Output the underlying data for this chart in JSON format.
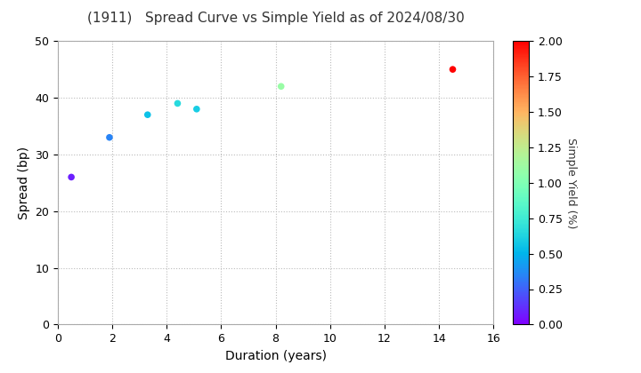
{
  "title": "(1911)   Spread Curve vs Simple Yield as of 2024/08/30",
  "xlabel": "Duration (years)",
  "ylabel": "Spread (bp)",
  "colorbar_label": "Simple Yield (%)",
  "xlim": [
    0,
    16
  ],
  "ylim": [
    0,
    50
  ],
  "xticks": [
    0,
    2,
    4,
    6,
    8,
    10,
    12,
    14,
    16
  ],
  "yticks": [
    0,
    10,
    20,
    30,
    40,
    50
  ],
  "colorbar_ticks": [
    0.0,
    0.25,
    0.5,
    0.75,
    1.0,
    1.25,
    1.5,
    1.75,
    2.0
  ],
  "points": [
    {
      "duration": 0.5,
      "spread": 26,
      "simple_yield": 0.08
    },
    {
      "duration": 1.9,
      "spread": 33,
      "simple_yield": 0.35
    },
    {
      "duration": 3.3,
      "spread": 37,
      "simple_yield": 0.55
    },
    {
      "duration": 4.4,
      "spread": 39,
      "simple_yield": 0.65
    },
    {
      "duration": 5.1,
      "spread": 38,
      "simple_yield": 0.6
    },
    {
      "duration": 8.2,
      "spread": 42,
      "simple_yield": 1.1
    },
    {
      "duration": 14.5,
      "spread": 45,
      "simple_yield": 2.05
    }
  ],
  "cmap": "rainbow",
  "cmap_vmin": 0.0,
  "cmap_vmax": 2.0,
  "marker_size": 30,
  "grid_color": "#bbbbbb",
  "grid_linestyle": ":",
  "background_color": "#ffffff",
  "title_fontsize": 11,
  "axis_label_fontsize": 10,
  "tick_fontsize": 9,
  "colorbar_label_fontsize": 9
}
